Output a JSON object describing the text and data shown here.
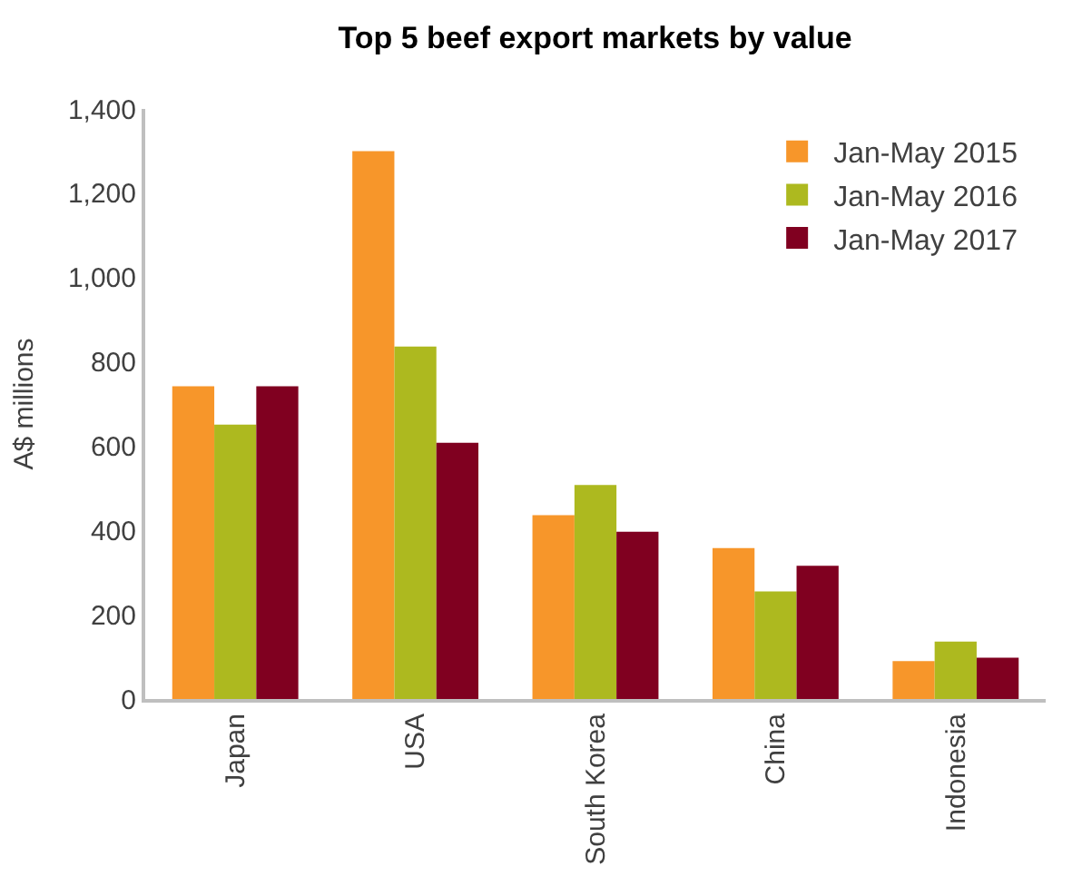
{
  "chart_data": {
    "type": "bar",
    "title": "Top 5 beef export markets by value",
    "ylabel": "A$ millions",
    "categories": [
      "Japan",
      "USA",
      "South Korea",
      "China",
      "Indonesia"
    ],
    "series": [
      {
        "name": "Jan-May 2015",
        "color": "#f7962a",
        "values": [
          742,
          1300,
          436,
          358,
          90
        ]
      },
      {
        "name": "Jan-May 2016",
        "color": "#adb91f",
        "values": [
          651,
          836,
          508,
          255,
          136
        ]
      },
      {
        "name": "Jan-May 2017",
        "color": "#800020",
        "values": [
          742,
          608,
          397,
          316,
          98
        ]
      }
    ],
    "ylim": [
      0,
      1400
    ],
    "yticks": [
      0,
      {
        "value": 200,
        "label": "200"
      },
      {
        "value": 400,
        "label": "400"
      },
      {
        "value": 600,
        "label": "600"
      },
      {
        "value": 800,
        "label": "800"
      },
      {
        "value": 1000,
        "label": "1,000"
      },
      {
        "value": 1200,
        "label": "1,200"
      },
      {
        "value": 1400,
        "label": "1,400"
      }
    ],
    "grid": false,
    "legend": "top right"
  }
}
